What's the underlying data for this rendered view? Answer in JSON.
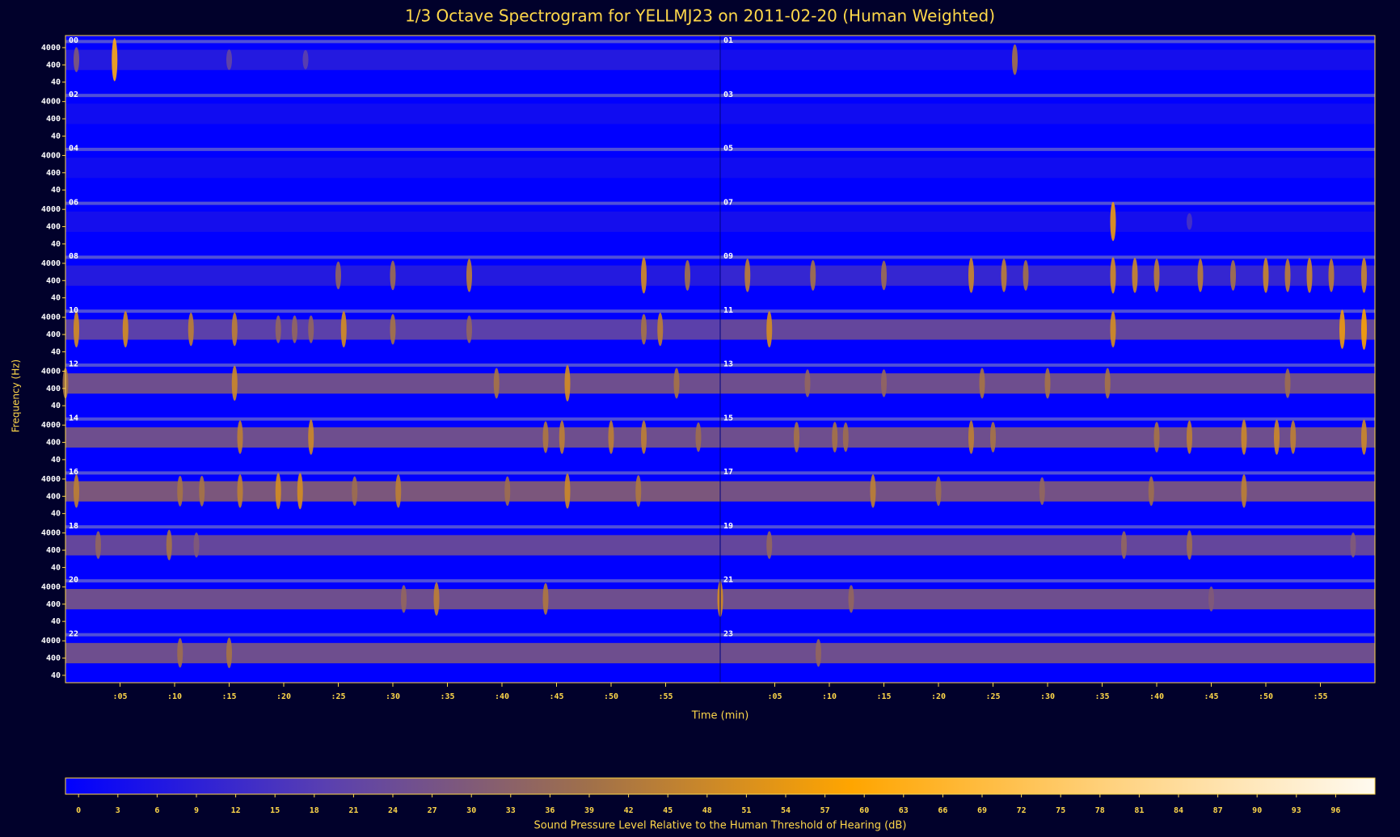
{
  "chart_data": {
    "type": "spectrogram",
    "title": "1/3 Octave Spectrogram for YELLMJ23 on 2011-02-20 (Human Weighted)",
    "x_label": "Time (min)",
    "y_label": "Frequency (Hz)",
    "colorbar_label": "Sound Pressure Level Relative to the Human Threshold of Hearing (dB)",
    "xlim": [
      0,
      60
    ],
    "xticks": [
      {
        "value": 5,
        "label": ":05"
      },
      {
        "value": 10,
        "label": ":10"
      },
      {
        "value": 15,
        "label": ":15"
      },
      {
        "value": 20,
        "label": ":20"
      },
      {
        "value": 25,
        "label": ":25"
      },
      {
        "value": 30,
        "label": ":30"
      },
      {
        "value": 35,
        "label": ":35"
      },
      {
        "value": 40,
        "label": ":40"
      },
      {
        "value": 45,
        "label": ":45"
      },
      {
        "value": 50,
        "label": ":50"
      },
      {
        "value": 55,
        "label": ":55"
      }
    ],
    "ylim": [
      15,
      20000
    ],
    "y_log": true,
    "yticks": [
      40,
      400,
      4000
    ],
    "zlim": [
      -1,
      99
    ],
    "zticks": [
      0,
      3,
      6,
      9,
      12,
      15,
      18,
      21,
      24,
      27,
      30,
      33,
      36,
      39,
      42,
      45,
      48,
      51,
      54,
      57,
      60,
      63,
      66,
      69,
      72,
      75,
      78,
      81,
      84,
      87,
      90,
      93,
      96
    ],
    "colormap": [
      "#0000ff",
      "#5a40b0",
      "#a0704a",
      "#ffa500",
      "#ffd27f",
      "#fffaf0"
    ],
    "panels": [
      {
        "label": "00",
        "band": 8,
        "events": [
          [
            4.5,
            62
          ],
          [
            1,
            30
          ],
          [
            15,
            22
          ],
          [
            22,
            20
          ]
        ]
      },
      {
        "label": "01",
        "band": 4,
        "events": [
          [
            27,
            40
          ]
        ]
      },
      {
        "label": "02",
        "band": 3,
        "events": []
      },
      {
        "label": "03",
        "band": 3,
        "events": []
      },
      {
        "label": "04",
        "band": 3,
        "events": []
      },
      {
        "label": "05",
        "band": 3,
        "events": []
      },
      {
        "label": "06",
        "band": 4,
        "events": []
      },
      {
        "label": "07",
        "band": 4,
        "events": [
          [
            36,
            55
          ],
          [
            43,
            15
          ]
        ]
      },
      {
        "label": "08",
        "band": 8,
        "events": [
          [
            25,
            35
          ],
          [
            30,
            38
          ],
          [
            37,
            45
          ],
          [
            53,
            50
          ],
          [
            57,
            40
          ]
        ]
      },
      {
        "label": "09",
        "band": 12,
        "events": [
          [
            2.5,
            45
          ],
          [
            8.5,
            40
          ],
          [
            15,
            38
          ],
          [
            23,
            48
          ],
          [
            26,
            45
          ],
          [
            28,
            40
          ],
          [
            36,
            50
          ],
          [
            38,
            48
          ],
          [
            40,
            45
          ],
          [
            44,
            45
          ],
          [
            47,
            40
          ],
          [
            50,
            48
          ],
          [
            52,
            45
          ],
          [
            54,
            48
          ],
          [
            56,
            45
          ],
          [
            59,
            48
          ]
        ]
      },
      {
        "label": "10",
        "band": 22,
        "events": [
          [
            1,
            50
          ],
          [
            5.5,
            50
          ],
          [
            11.5,
            45
          ],
          [
            15.5,
            45
          ],
          [
            19.5,
            35
          ],
          [
            21,
            35
          ],
          [
            22.5,
            35
          ],
          [
            25.5,
            50
          ],
          [
            30,
            40
          ],
          [
            37,
            35
          ],
          [
            53,
            40
          ],
          [
            54.5,
            45
          ]
        ]
      },
      {
        "label": "11",
        "band": 25,
        "events": [
          [
            4.5,
            50
          ],
          [
            36,
            50
          ],
          [
            57,
            55
          ],
          [
            59,
            58
          ]
        ]
      },
      {
        "label": "12",
        "band": 28,
        "events": [
          [
            0,
            40
          ],
          [
            15.5,
            48
          ],
          [
            39.5,
            40
          ],
          [
            46,
            50
          ],
          [
            56,
            40
          ]
        ]
      },
      {
        "label": "13",
        "band": 28,
        "events": [
          [
            8,
            35
          ],
          [
            15,
            35
          ],
          [
            24,
            40
          ],
          [
            30,
            40
          ],
          [
            35.5,
            40
          ],
          [
            52,
            38
          ]
        ]
      },
      {
        "label": "14",
        "band": 28,
        "events": [
          [
            16,
            45
          ],
          [
            22.5,
            48
          ],
          [
            44,
            42
          ],
          [
            45.5,
            45
          ],
          [
            50,
            45
          ],
          [
            53,
            45
          ],
          [
            58,
            38
          ]
        ]
      },
      {
        "label": "15",
        "band": 28,
        "events": [
          [
            7,
            40
          ],
          [
            10.5,
            40
          ],
          [
            11.5,
            38
          ],
          [
            23,
            45
          ],
          [
            25,
            40
          ],
          [
            40,
            40
          ],
          [
            43,
            45
          ],
          [
            48,
            48
          ],
          [
            51,
            48
          ],
          [
            52.5,
            45
          ],
          [
            59,
            48
          ]
        ]
      },
      {
        "label": "16",
        "band": 32,
        "events": [
          [
            1,
            45
          ],
          [
            10.5,
            40
          ],
          [
            12.5,
            40
          ],
          [
            16,
            45
          ],
          [
            19.5,
            50
          ],
          [
            21.5,
            50
          ],
          [
            26.5,
            38
          ],
          [
            30.5,
            45
          ],
          [
            40.5,
            38
          ],
          [
            46,
            48
          ],
          [
            52.5,
            42
          ]
        ]
      },
      {
        "label": "17",
        "band": 30,
        "events": [
          [
            14,
            45
          ],
          [
            20,
            38
          ],
          [
            29.5,
            35
          ],
          [
            39.5,
            38
          ],
          [
            48,
            45
          ]
        ]
      },
      {
        "label": "18",
        "band": 25,
        "events": [
          [
            3,
            35
          ],
          [
            9.5,
            40
          ],
          [
            12,
            30
          ]
        ]
      },
      {
        "label": "19",
        "band": 25,
        "events": [
          [
            4.5,
            35
          ],
          [
            37,
            35
          ],
          [
            43,
            38
          ],
          [
            58,
            30
          ]
        ]
      },
      {
        "label": "20",
        "band": 28,
        "events": [
          [
            31,
            35
          ],
          [
            34,
            45
          ],
          [
            44,
            42
          ]
        ]
      },
      {
        "label": "21",
        "band": 28,
        "events": [
          [
            0,
            50
          ],
          [
            12,
            35
          ],
          [
            45,
            30
          ]
        ]
      },
      {
        "label": "22",
        "band": 28,
        "events": [
          [
            10.5,
            38
          ],
          [
            15,
            40
          ]
        ]
      },
      {
        "label": "23",
        "band": 28,
        "events": [
          [
            9,
            35
          ]
        ]
      }
    ]
  }
}
